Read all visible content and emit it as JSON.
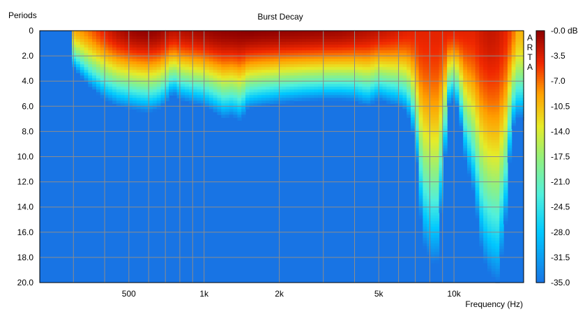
{
  "chart_data": {
    "type": "heatmap",
    "title": "Burst Decay",
    "xlabel": "Frequency (Hz)",
    "ylabel": "Periods",
    "x_scale": "log",
    "xlim": [
      220,
      19000
    ],
    "ylim": [
      0,
      20
    ],
    "y_inverted": true,
    "x_ticks": [
      {
        "value": 500,
        "label": "500"
      },
      {
        "value": 1000,
        "label": "1k"
      },
      {
        "value": 2000,
        "label": "2k"
      },
      {
        "value": 5000,
        "label": "5k"
      },
      {
        "value": 10000,
        "label": "10k"
      }
    ],
    "y_ticks": [
      "0",
      "2.0",
      "4.0",
      "6.0",
      "8.0",
      "10.0",
      "12.0",
      "14.0",
      "16.0",
      "18.0",
      "20.0"
    ],
    "colorbar": {
      "unit": "dB",
      "min": -35,
      "max": 0,
      "labels": [
        "-0.0 dB",
        "-3.5",
        "-7.0",
        "-10.5",
        "-14.0",
        "-17.5",
        "-21.0",
        "-24.5",
        "-28.0",
        "-31.5",
        "-35.0"
      ]
    },
    "grid": true,
    "watermark": "ARTA",
    "decay_profile_note_free": true,
    "low_freq_start_hz": 300,
    "decay": {
      "freq_hz": [
        300,
        350,
        400,
        450,
        500,
        550,
        600,
        650,
        700,
        750,
        800,
        900,
        1000,
        1100,
        1200,
        1300,
        1400,
        1500,
        1700,
        2000,
        2500,
        3000,
        3500,
        4000,
        4500,
        5000,
        5500,
        6000,
        6500,
        7000,
        7500,
        8000,
        8500,
        9000,
        9500,
        10000,
        10500,
        11000,
        12000,
        13000,
        14000,
        15000,
        16000,
        17000,
        18000
      ],
      "extent_periods": [
        3.0,
        4.5,
        5.5,
        6.0,
        6.2,
        6.4,
        6.5,
        6.3,
        5.8,
        5.0,
        5.5,
        5.8,
        6.0,
        6.5,
        7.0,
        6.8,
        7.2,
        6.2,
        6.0,
        5.8,
        5.6,
        5.5,
        5.5,
        5.6,
        6.0,
        5.5,
        5.8,
        6.0,
        6.5,
        9.0,
        17.0,
        18.0,
        19.0,
        13.0,
        6.0,
        5.5,
        6.5,
        10.0,
        13.0,
        18.0,
        19.5,
        20.0,
        16.0,
        8.0,
        7.0
      ],
      "peak_db": [
        -10,
        -7,
        -4,
        -2,
        -1,
        -0.5,
        -0.3,
        -0.6,
        -1.5,
        -2.5,
        -2,
        -1.5,
        -1,
        -0.5,
        -0.3,
        -0.2,
        -0.1,
        0,
        -0.2,
        -0.4,
        -0.6,
        -0.8,
        -1,
        -1.5,
        -2,
        -2.5,
        -3,
        -3.5,
        -4,
        -4,
        -4,
        -4,
        -4,
        -4,
        -4,
        -4,
        -4,
        -4,
        -4,
        -3,
        -2.5,
        -3,
        -4,
        -6,
        -10
      ]
    }
  }
}
